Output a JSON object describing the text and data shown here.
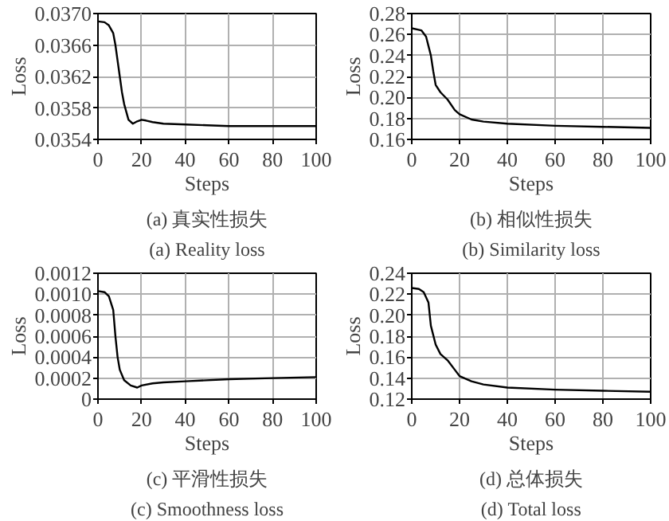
{
  "chart_data": [
    {
      "type": "line",
      "title": "(a) 真实性损失",
      "subtitle": "(a) Reality loss",
      "xlabel": "Steps",
      "ylabel": "Loss",
      "x": [
        0,
        3,
        5,
        7,
        8,
        9,
        10,
        11,
        12,
        14,
        16,
        18,
        20,
        22,
        25,
        30,
        40,
        50,
        60,
        80,
        100
      ],
      "series": [
        {
          "color": "#000000",
          "values": [
            0.0369,
            0.03689,
            0.03685,
            0.03675,
            0.0366,
            0.0364,
            0.0362,
            0.036,
            0.03585,
            0.03565,
            0.0356,
            0.03563,
            0.03565,
            0.03564,
            0.03562,
            0.0356,
            0.03559,
            0.03558,
            0.03557,
            0.03557,
            0.03557
          ]
        }
      ],
      "xlim": [
        0,
        100
      ],
      "xticks": [
        0,
        20,
        40,
        60,
        80,
        100
      ],
      "ylim": [
        0.0354,
        0.037
      ],
      "yticks": [
        {
          "value": 0.0354,
          "label": "0.0354"
        },
        {
          "value": 0.0358,
          "label": "0.0358"
        },
        {
          "value": 0.0362,
          "label": "0.0362"
        },
        {
          "value": 0.0366,
          "label": "0.0366"
        },
        {
          "value": 0.037,
          "label": "0.0370"
        }
      ],
      "grid": true
    },
    {
      "type": "line",
      "title": "(b) 相似性损失",
      "subtitle": "(b) Similarity loss",
      "xlabel": "Steps",
      "ylabel": "Loss",
      "x": [
        0,
        4,
        6,
        8,
        9,
        10,
        12,
        15,
        18,
        20,
        25,
        30,
        40,
        60,
        80,
        100
      ],
      "series": [
        {
          "color": "#000000",
          "values": [
            0.266,
            0.264,
            0.258,
            0.24,
            0.225,
            0.212,
            0.205,
            0.198,
            0.188,
            0.184,
            0.179,
            0.177,
            0.175,
            0.173,
            0.172,
            0.171
          ]
        }
      ],
      "xlim": [
        0,
        100
      ],
      "xticks": [
        0,
        20,
        40,
        60,
        80,
        100
      ],
      "ylim": [
        0.16,
        0.28
      ],
      "yticks": [
        {
          "value": 0.16,
          "label": "0.16"
        },
        {
          "value": 0.18,
          "label": "0.18"
        },
        {
          "value": 0.2,
          "label": "0.20"
        },
        {
          "value": 0.22,
          "label": "0.22"
        },
        {
          "value": 0.24,
          "label": "0.24"
        },
        {
          "value": 0.26,
          "label": "0.26"
        },
        {
          "value": 0.28,
          "label": "0.28"
        }
      ],
      "grid": true
    },
    {
      "type": "line",
      "title": "(c) 平滑性损失",
      "subtitle": "(c) Smoothness loss",
      "xlabel": "Steps",
      "ylabel": "Loss",
      "x": [
        0,
        3,
        5,
        7,
        8,
        9,
        10,
        12,
        15,
        18,
        20,
        25,
        30,
        40,
        60,
        80,
        100
      ],
      "series": [
        {
          "color": "#000000",
          "values": [
            0.00103,
            0.00102,
            0.00098,
            0.00085,
            0.0006,
            0.0004,
            0.00028,
            0.00018,
            0.00013,
            0.00011,
            0.00013,
            0.00015,
            0.00016,
            0.00017,
            0.00019,
            0.0002,
            0.00021
          ]
        }
      ],
      "xlim": [
        0,
        100
      ],
      "xticks": [
        0,
        20,
        40,
        60,
        80,
        100
      ],
      "ylim": [
        0,
        0.0012
      ],
      "yticks": [
        0,
        {
          "value": 0.0002,
          "label": "0.0002"
        },
        {
          "value": 0.0004,
          "label": "0.0004"
        },
        {
          "value": 0.0006,
          "label": "0.0006"
        },
        {
          "value": 0.0008,
          "label": "0.0008"
        },
        {
          "value": 0.001,
          "label": "0.0010"
        },
        {
          "value": 0.0012,
          "label": "0.0012"
        }
      ],
      "grid": true
    },
    {
      "type": "line",
      "title": "(d) 总体损失",
      "subtitle": "(d) Total loss",
      "xlabel": "Steps",
      "ylabel": "Loss",
      "x": [
        0,
        3,
        5,
        7,
        8,
        10,
        12,
        15,
        18,
        20,
        25,
        30,
        40,
        60,
        80,
        100
      ],
      "series": [
        {
          "color": "#000000",
          "values": [
            0.226,
            0.225,
            0.222,
            0.212,
            0.19,
            0.172,
            0.163,
            0.157,
            0.148,
            0.142,
            0.137,
            0.134,
            0.131,
            0.129,
            0.128,
            0.127
          ]
        }
      ],
      "xlim": [
        0,
        100
      ],
      "xticks": [
        0,
        20,
        40,
        60,
        80,
        100
      ],
      "ylim": [
        0.12,
        0.24
      ],
      "yticks": [
        {
          "value": 0.12,
          "label": "0.12"
        },
        {
          "value": 0.14,
          "label": "0.14"
        },
        {
          "value": 0.16,
          "label": "0.16"
        },
        {
          "value": 0.18,
          "label": "0.18"
        },
        {
          "value": 0.2,
          "label": "0.20"
        },
        {
          "value": 0.22,
          "label": "0.22"
        },
        {
          "value": 0.24,
          "label": "0.24"
        }
      ],
      "grid": true
    }
  ]
}
